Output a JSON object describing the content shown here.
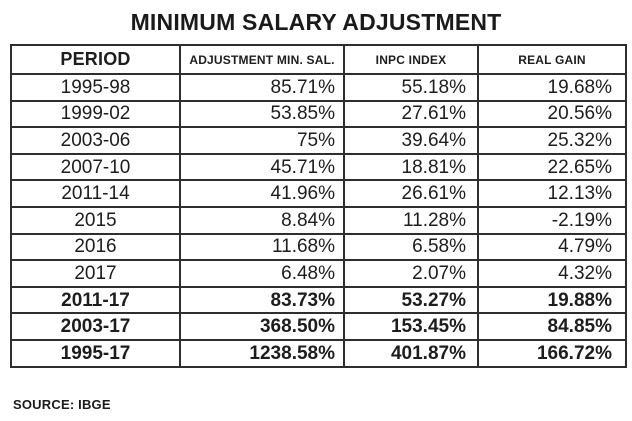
{
  "title": "MINIMUM SALARY ADJUSTMENT",
  "source_note": "SOURCE: IBGE",
  "colors": {
    "background": "#ffffff",
    "text": "#1d1d1d",
    "border": "#2e2e2e"
  },
  "table": {
    "columns": [
      "PERIOD",
      "ADJUSTMENT MIN. SAL.",
      "INPC INDEX",
      "REAL GAIN"
    ],
    "rows": [
      {
        "period": "1995-98",
        "adjustment": "85.71%",
        "inpc": "55.18%",
        "real_gain": "19.68%",
        "bold": false
      },
      {
        "period": "1999-02",
        "adjustment": "53.85%",
        "inpc": "27.61%",
        "real_gain": "20.56%",
        "bold": false
      },
      {
        "period": "2003-06",
        "adjustment": "75%",
        "inpc": "39.64%",
        "real_gain": "25.32%",
        "bold": false
      },
      {
        "period": "2007-10",
        "adjustment": "45.71%",
        "inpc": "18.81%",
        "real_gain": "22.65%",
        "bold": false
      },
      {
        "period": "2011-14",
        "adjustment": "41.96%",
        "inpc": "26.61%",
        "real_gain": "12.13%",
        "bold": false
      },
      {
        "period": "2015",
        "adjustment": "8.84%",
        "inpc": "11.28%",
        "real_gain": "-2.19%",
        "bold": false
      },
      {
        "period": "2016",
        "adjustment": "11.68%",
        "inpc": "6.58%",
        "real_gain": "4.79%",
        "bold": false
      },
      {
        "period": "2017",
        "adjustment": "6.48%",
        "inpc": "2.07%",
        "real_gain": "4.32%",
        "bold": false
      },
      {
        "period": "2011-17",
        "adjustment": "83.73%",
        "inpc": "53.27%",
        "real_gain": "19.88%",
        "bold": true
      },
      {
        "period": "2003-17",
        "adjustment": "368.50%",
        "inpc": "153.45%",
        "real_gain": "84.85%",
        "bold": true
      },
      {
        "period": "1995-17",
        "adjustment": "1238.58%",
        "inpc": "401.87%",
        "real_gain": "166.72%",
        "bold": true
      }
    ]
  },
  "chart_data": {
    "type": "table",
    "title": "MINIMUM SALARY ADJUSTMENT",
    "columns": [
      "PERIOD",
      "ADJUSTMENT MIN. SAL.",
      "INPC INDEX",
      "REAL GAIN"
    ],
    "units": "%",
    "rows": [
      [
        "1995-98",
        85.71,
        55.18,
        19.68
      ],
      [
        "1999-02",
        53.85,
        27.61,
        20.56
      ],
      [
        "2003-06",
        75,
        39.64,
        25.32
      ],
      [
        "2007-10",
        45.71,
        18.81,
        22.65
      ],
      [
        "2011-14",
        41.96,
        26.61,
        12.13
      ],
      [
        "2015",
        8.84,
        11.28,
        -2.19
      ],
      [
        "2016",
        11.68,
        6.58,
        4.79
      ],
      [
        "2017",
        6.48,
        2.07,
        4.32
      ],
      [
        "2011-17",
        83.73,
        53.27,
        19.88
      ],
      [
        "2003-17",
        368.5,
        153.45,
        84.85
      ],
      [
        "1995-17",
        1238.58,
        401.87,
        166.72
      ]
    ],
    "summary_rows": [
      "2011-17",
      "2003-17",
      "1995-17"
    ],
    "source": "IBGE"
  }
}
